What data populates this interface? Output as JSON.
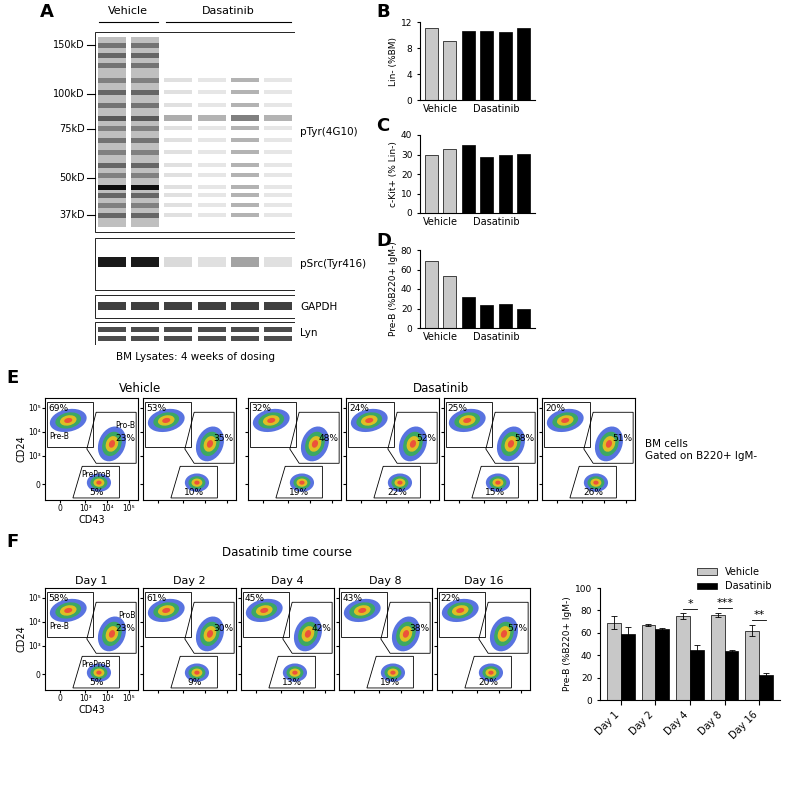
{
  "panel_labels": [
    "A",
    "B",
    "C",
    "D",
    "E",
    "F"
  ],
  "blot": {
    "groups": [
      {
        "name": "Vehicle",
        "lanes": 2
      },
      {
        "name": "Dasatinib",
        "lanes": 4
      }
    ],
    "markers": [
      {
        "value": 150,
        "label": "150kD"
      },
      {
        "value": 100,
        "label": "100kD"
      },
      {
        "value": 75,
        "label": "75kD"
      },
      {
        "value": 50,
        "label": "50kD"
      },
      {
        "value": 37,
        "label": "37kD"
      }
    ],
    "blots": [
      "pTyr(4G10)",
      "pSrc(Tyr416)",
      "GAPDH",
      "Lyn"
    ],
    "caption": "BM Lysates: 4 weeks of dosing"
  },
  "chart_data": [
    {
      "type": "bar",
      "ylabel": "Lin- (%BM)",
      "categories": [
        null,
        null,
        null,
        null,
        null,
        null
      ],
      "ylim": [
        0,
        12
      ],
      "yticks": [
        0,
        4,
        8,
        12
      ],
      "series": [
        {
          "name": "Vehicle",
          "color": "#c8c8c8",
          "values": [
            11.1,
            9.1,
            null,
            null,
            null,
            null
          ]
        },
        {
          "name": "Dasatinib",
          "color": "#000000",
          "values": [
            null,
            null,
            10.6,
            10.6,
            10.5,
            11.1
          ]
        }
      ]
    },
    {
      "type": "bar",
      "ylabel": "c-Kit+ (% Lin-)",
      "categories": [
        null,
        null,
        null,
        null,
        null,
        null
      ],
      "ylim": [
        0,
        40
      ],
      "yticks": [
        0,
        10,
        20,
        30,
        40
      ],
      "series": [
        {
          "name": "Vehicle",
          "color": "#c8c8c8",
          "values": [
            29.5,
            33,
            null,
            null,
            null,
            null
          ]
        },
        {
          "name": "Dasatinib",
          "color": "#000000",
          "values": [
            null,
            null,
            35,
            28.5,
            29.5,
            30.5
          ]
        }
      ]
    },
    {
      "type": "bar",
      "ylabel": "Pre-B (%B220+ IgM-)",
      "categories": [
        null,
        null,
        null,
        null,
        null,
        null
      ],
      "ylim": [
        0,
        80
      ],
      "yticks": [
        0,
        20,
        40,
        60,
        80
      ],
      "series": [
        {
          "name": "Vehicle",
          "color": "#c8c8c8",
          "values": [
            69,
            53,
            null,
            null,
            null,
            null
          ]
        },
        {
          "name": "Dasatinib",
          "color": "#000000",
          "values": [
            null,
            null,
            32,
            24,
            25,
            20
          ]
        }
      ]
    },
    {
      "type": "bar",
      "ylabel": "Pre-B (%B220+ IgM-)",
      "categories": [
        "Day 1",
        "Day 2",
        "Day 4",
        "Day 8",
        "Day 16"
      ],
      "ylim": [
        0,
        100
      ],
      "yticks": [
        0,
        20,
        40,
        60,
        80,
        100
      ],
      "legend": "upper right",
      "series": [
        {
          "name": "Vehicle",
          "color": "#c8c8c8",
          "values": [
            69,
            67,
            75,
            76,
            62
          ],
          "errors": [
            6,
            1,
            2.5,
            2,
            5
          ]
        },
        {
          "name": "Dasatinib",
          "color": "#000000",
          "values": [
            59,
            63,
            45,
            44,
            22
          ],
          "errors": [
            6,
            1.5,
            4,
            1,
            2
          ]
        }
      ],
      "annotations": [
        {
          "category": "Day 4",
          "text": "*"
        },
        {
          "category": "Day 8",
          "text": "***"
        },
        {
          "category": "Day 16",
          "text": "**"
        }
      ]
    }
  ],
  "flow": {
    "axis": {
      "log": true,
      "xlim": [
        -300,
        262144
      ],
      "ylim": [
        -300,
        262144
      ],
      "xticks": [
        0,
        {
          "value": 1000,
          "label": "10³"
        },
        {
          "value": 10000,
          "label": "10⁴"
        },
        {
          "value": 100000,
          "label": "10⁵"
        }
      ],
      "yticks": [
        0,
        {
          "value": 1000,
          "label": "10³"
        },
        {
          "value": 10000,
          "label": "10⁴"
        },
        {
          "value": 100000,
          "label": "10⁵"
        }
      ]
    },
    "E": {
      "groups": [
        {
          "name": "Vehicle",
          "plots": 2
        },
        {
          "name": "Dasatinib",
          "plots": 4
        }
      ],
      "side_text": [
        "BM cells",
        "Gated on B220+ IgM-"
      ],
      "xlabel": "CD43",
      "ylabel": "CD24",
      "gate_names": [
        "Pre-B",
        "Pro-B",
        "PreProB"
      ],
      "plots": [
        [
          "69%",
          "23%",
          "5%"
        ],
        [
          "53%",
          "35%",
          "10%"
        ],
        [
          "32%",
          "48%",
          "19%"
        ],
        [
          "24%",
          "52%",
          "22%"
        ],
        [
          "25%",
          "58%",
          "15%"
        ],
        [
          "20%",
          "51%",
          "26%"
        ]
      ]
    },
    "F": {
      "header": "Dasatinib time course",
      "xlabel": "CD43",
      "ylabel": "CD24",
      "gate_names": [
        "Pre-B",
        "ProB",
        "PreProB"
      ],
      "plots": [
        {
          "title": "Day 1",
          "percentages": [
            "58%",
            "23%",
            "5%"
          ]
        },
        {
          "title": "Day 2",
          "percentages": [
            "61%",
            "30%",
            "9%"
          ]
        },
        {
          "title": "Day 4",
          "percentages": [
            "45%",
            "42%",
            "13%"
          ]
        },
        {
          "title": "Day 8",
          "percentages": [
            "43%",
            "38%",
            "19%"
          ]
        },
        {
          "title": "Day 16",
          "percentages": [
            "22%",
            "57%",
            "20%"
          ]
        }
      ]
    }
  }
}
